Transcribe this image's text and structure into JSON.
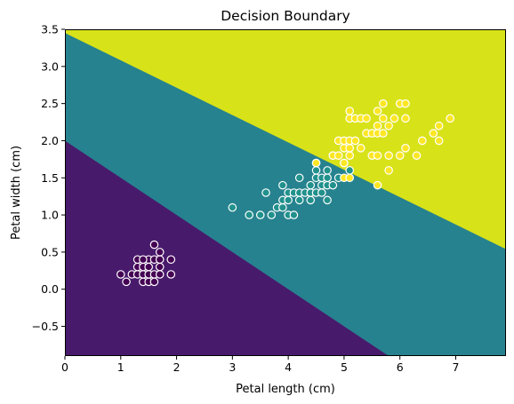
{
  "chart_data": {
    "type": "scatter",
    "title": "Decision Boundary",
    "xlabel": "Petal length (cm)",
    "ylabel": "Petal width (cm)",
    "xlim": [
      0,
      7.9
    ],
    "ylim": [
      -0.9,
      3.5
    ],
    "xticks": [
      0,
      1,
      2,
      3,
      4,
      5,
      6,
      7
    ],
    "yticks": [
      -0.5,
      0.0,
      0.5,
      1.0,
      1.5,
      2.0,
      2.5,
      3.0,
      3.5
    ],
    "grid": false,
    "regions": [
      {
        "class": 0,
        "color": "#481a6c"
      },
      {
        "class": 1,
        "color": "#26828e"
      },
      {
        "class": 2,
        "color": "#d8e219"
      }
    ],
    "boundaries": [
      {
        "between": [
          0,
          1
        ],
        "x": [
          0,
          5.8
        ],
        "y": [
          2.0,
          -0.9
        ]
      },
      {
        "between": [
          1,
          2
        ],
        "x": [
          0,
          7.9
        ],
        "y": [
          3.45,
          0.54
        ]
      }
    ],
    "point_edge_color": "#ffffff",
    "series": [
      {
        "class": 0,
        "color": "#440154",
        "points": [
          [
            1.0,
            0.2
          ],
          [
            1.2,
            0.2
          ],
          [
            1.1,
            0.1
          ],
          [
            1.3,
            0.2
          ],
          [
            1.3,
            0.3
          ],
          [
            1.3,
            0.4
          ],
          [
            1.4,
            0.1
          ],
          [
            1.4,
            0.2
          ],
          [
            1.4,
            0.3
          ],
          [
            1.5,
            0.1
          ],
          [
            1.5,
            0.2
          ],
          [
            1.5,
            0.4
          ],
          [
            1.6,
            0.2
          ],
          [
            1.6,
            0.4
          ],
          [
            1.6,
            0.6
          ],
          [
            1.7,
            0.3
          ],
          [
            1.7,
            0.4
          ],
          [
            1.7,
            0.2
          ],
          [
            1.7,
            0.5
          ],
          [
            1.9,
            0.2
          ],
          [
            1.9,
            0.4
          ],
          [
            1.5,
            0.3
          ],
          [
            1.4,
            0.4
          ],
          [
            1.6,
            0.1
          ]
        ]
      },
      {
        "class": 1,
        "color": "#21918c",
        "points": [
          [
            3.0,
            1.1
          ],
          [
            3.3,
            1.0
          ],
          [
            3.5,
            1.0
          ],
          [
            3.6,
            1.3
          ],
          [
            3.7,
            1.0
          ],
          [
            3.8,
            1.1
          ],
          [
            3.9,
            1.1
          ],
          [
            3.9,
            1.2
          ],
          [
            3.9,
            1.4
          ],
          [
            4.0,
            1.0
          ],
          [
            4.0,
            1.2
          ],
          [
            4.0,
            1.3
          ],
          [
            4.1,
            1.0
          ],
          [
            4.1,
            1.3
          ],
          [
            4.2,
            1.2
          ],
          [
            4.2,
            1.3
          ],
          [
            4.3,
            1.3
          ],
          [
            4.4,
            1.2
          ],
          [
            4.4,
            1.3
          ],
          [
            4.4,
            1.4
          ],
          [
            4.5,
            1.3
          ],
          [
            4.5,
            1.5
          ],
          [
            4.5,
            1.6
          ],
          [
            4.6,
            1.3
          ],
          [
            4.6,
            1.4
          ],
          [
            4.6,
            1.5
          ],
          [
            4.7,
            1.2
          ],
          [
            4.7,
            1.4
          ],
          [
            4.7,
            1.5
          ],
          [
            4.7,
            1.6
          ],
          [
            4.8,
            1.4
          ],
          [
            4.8,
            1.8
          ],
          [
            4.9,
            1.5
          ],
          [
            5.0,
            1.7
          ],
          [
            5.1,
            1.6
          ],
          [
            4.2,
            1.5
          ],
          [
            4.5,
            1.7
          ]
        ]
      },
      {
        "class": 2,
        "color": "#fde725",
        "points": [
          [
            4.5,
            1.7
          ],
          [
            4.8,
            1.8
          ],
          [
            4.9,
            1.8
          ],
          [
            4.9,
            2.0
          ],
          [
            5.0,
            1.5
          ],
          [
            5.0,
            1.9
          ],
          [
            5.0,
            2.0
          ],
          [
            5.1,
            1.5
          ],
          [
            5.1,
            1.8
          ],
          [
            5.1,
            1.9
          ],
          [
            5.1,
            2.0
          ],
          [
            5.1,
            2.3
          ],
          [
            5.1,
            2.4
          ],
          [
            5.2,
            2.0
          ],
          [
            5.2,
            2.3
          ],
          [
            5.3,
            1.9
          ],
          [
            5.3,
            2.3
          ],
          [
            5.4,
            2.1
          ],
          [
            5.4,
            2.3
          ],
          [
            5.5,
            1.8
          ],
          [
            5.5,
            2.1
          ],
          [
            5.6,
            1.4
          ],
          [
            5.6,
            1.8
          ],
          [
            5.6,
            2.1
          ],
          [
            5.6,
            2.2
          ],
          [
            5.6,
            2.4
          ],
          [
            5.7,
            2.1
          ],
          [
            5.7,
            2.3
          ],
          [
            5.7,
            2.5
          ],
          [
            5.8,
            1.6
          ],
          [
            5.8,
            1.8
          ],
          [
            5.8,
            2.2
          ],
          [
            5.9,
            2.3
          ],
          [
            6.0,
            1.8
          ],
          [
            6.0,
            2.5
          ],
          [
            6.1,
            1.9
          ],
          [
            6.1,
            2.3
          ],
          [
            6.1,
            2.5
          ],
          [
            6.3,
            1.8
          ],
          [
            6.4,
            2.0
          ],
          [
            6.6,
            2.1
          ],
          [
            6.7,
            2.0
          ],
          [
            6.7,
            2.2
          ],
          [
            6.9,
            2.3
          ],
          [
            5.0,
            1.7
          ]
        ]
      }
    ]
  }
}
